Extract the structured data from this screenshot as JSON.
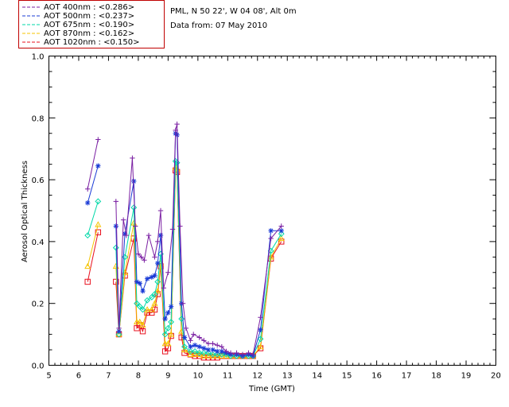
{
  "chart_data": {
    "type": "line",
    "title": "PML, N 50 22', W 04 08', Alt 0m",
    "subtitle": "Data from: 07 May 2010",
    "xlabel": "Time (GMT)",
    "ylabel": "Aerosol Optical Thickness",
    "xlim": [
      5,
      20
    ],
    "ylim": [
      0.0,
      1.0
    ],
    "xticks": [
      "5",
      "6",
      "7",
      "8",
      "9",
      "10",
      "11",
      "12",
      "13",
      "14",
      "15",
      "16",
      "17",
      "18",
      "19",
      "20"
    ],
    "yticks": [
      "0.0",
      "0.2",
      "0.4",
      "0.6",
      "0.8",
      "1.0"
    ],
    "series": [
      {
        "name": "AOT  400nm : <0.286>",
        "color": "#7a1fa2",
        "marker": "plus",
        "points": [
          [
            6.3,
            0.57
          ],
          [
            6.65,
            0.73
          ],
          [
            7.25,
            0.53
          ],
          [
            7.35,
            0.12
          ],
          [
            7.5,
            0.47
          ],
          [
            7.6,
            0.42
          ],
          [
            7.8,
            0.67
          ],
          [
            7.9,
            0.45
          ],
          [
            8.0,
            0.36
          ],
          [
            8.1,
            0.35
          ],
          [
            8.2,
            0.34
          ],
          [
            8.35,
            0.42
          ],
          [
            8.55,
            0.35
          ],
          [
            8.65,
            0.4
          ],
          [
            8.75,
            0.5
          ],
          [
            8.85,
            0.25
          ],
          [
            9.0,
            0.3
          ],
          [
            9.15,
            0.44
          ],
          [
            9.25,
            0.76
          ],
          [
            9.3,
            0.78
          ],
          [
            9.4,
            0.45
          ],
          [
            9.5,
            0.2
          ],
          [
            9.6,
            0.12
          ],
          [
            9.75,
            0.08
          ],
          [
            9.85,
            0.1
          ],
          [
            10.05,
            0.09
          ],
          [
            10.2,
            0.08
          ],
          [
            10.35,
            0.07
          ],
          [
            10.5,
            0.07
          ],
          [
            10.65,
            0.065
          ],
          [
            10.8,
            0.06
          ],
          [
            10.95,
            0.045
          ],
          [
            11.1,
            0.04
          ],
          [
            11.3,
            0.04
          ],
          [
            11.5,
            0.035
          ],
          [
            11.7,
            0.04
          ],
          [
            11.85,
            0.035
          ],
          [
            12.1,
            0.155
          ],
          [
            12.45,
            0.41
          ],
          [
            12.8,
            0.45
          ]
        ]
      },
      {
        "name": "AOT  500nm : <0.237>",
        "color": "#1a3bd6",
        "marker": "star",
        "points": [
          [
            6.3,
            0.525
          ],
          [
            6.65,
            0.645
          ],
          [
            7.25,
            0.45
          ],
          [
            7.35,
            0.11
          ],
          [
            7.55,
            0.425
          ],
          [
            7.85,
            0.595
          ],
          [
            7.95,
            0.27
          ],
          [
            8.05,
            0.265
          ],
          [
            8.15,
            0.24
          ],
          [
            8.3,
            0.28
          ],
          [
            8.45,
            0.285
          ],
          [
            8.55,
            0.29
          ],
          [
            8.65,
            0.33
          ],
          [
            8.75,
            0.42
          ],
          [
            8.9,
            0.15
          ],
          [
            9.0,
            0.17
          ],
          [
            9.1,
            0.19
          ],
          [
            9.25,
            0.75
          ],
          [
            9.3,
            0.745
          ],
          [
            9.45,
            0.2
          ],
          [
            9.55,
            0.09
          ],
          [
            9.75,
            0.06
          ],
          [
            9.9,
            0.065
          ],
          [
            10.05,
            0.06
          ],
          [
            10.2,
            0.055
          ],
          [
            10.35,
            0.05
          ],
          [
            10.5,
            0.05
          ],
          [
            10.65,
            0.045
          ],
          [
            10.8,
            0.045
          ],
          [
            10.95,
            0.04
          ],
          [
            11.1,
            0.035
          ],
          [
            11.3,
            0.035
          ],
          [
            11.5,
            0.03
          ],
          [
            11.7,
            0.035
          ],
          [
            11.85,
            0.03
          ],
          [
            12.1,
            0.115
          ],
          [
            12.45,
            0.435
          ],
          [
            12.8,
            0.435
          ]
        ]
      },
      {
        "name": "AOT  675nm : <0.190>",
        "color": "#00d8a8",
        "marker": "diamond",
        "points": [
          [
            6.3,
            0.42
          ],
          [
            6.65,
            0.53
          ],
          [
            7.25,
            0.38
          ],
          [
            7.35,
            0.1
          ],
          [
            7.55,
            0.35
          ],
          [
            7.85,
            0.51
          ],
          [
            7.95,
            0.2
          ],
          [
            8.05,
            0.19
          ],
          [
            8.15,
            0.18
          ],
          [
            8.3,
            0.21
          ],
          [
            8.45,
            0.22
          ],
          [
            8.55,
            0.23
          ],
          [
            8.65,
            0.27
          ],
          [
            8.75,
            0.36
          ],
          [
            8.9,
            0.1
          ],
          [
            9.0,
            0.12
          ],
          [
            9.1,
            0.14
          ],
          [
            9.25,
            0.66
          ],
          [
            9.3,
            0.655
          ],
          [
            9.45,
            0.15
          ],
          [
            9.55,
            0.06
          ],
          [
            9.75,
            0.045
          ],
          [
            9.9,
            0.045
          ],
          [
            10.05,
            0.04
          ],
          [
            10.2,
            0.04
          ],
          [
            10.35,
            0.04
          ],
          [
            10.5,
            0.035
          ],
          [
            10.65,
            0.035
          ],
          [
            10.8,
            0.035
          ],
          [
            10.95,
            0.035
          ],
          [
            11.1,
            0.03
          ],
          [
            11.3,
            0.03
          ],
          [
            11.5,
            0.03
          ],
          [
            11.7,
            0.03
          ],
          [
            11.85,
            0.03
          ],
          [
            12.1,
            0.085
          ],
          [
            12.45,
            0.37
          ],
          [
            12.8,
            0.425
          ]
        ]
      },
      {
        "name": "AOT  870nm : <0.162>",
        "color": "#f5c400",
        "marker": "triangle",
        "points": [
          [
            6.3,
            0.32
          ],
          [
            6.65,
            0.455
          ],
          [
            7.25,
            0.32
          ],
          [
            7.35,
            0.1
          ],
          [
            7.55,
            0.3
          ],
          [
            7.85,
            0.46
          ],
          [
            7.95,
            0.14
          ],
          [
            8.05,
            0.14
          ],
          [
            8.15,
            0.13
          ],
          [
            8.3,
            0.18
          ],
          [
            8.45,
            0.18
          ],
          [
            8.55,
            0.2
          ],
          [
            8.65,
            0.24
          ],
          [
            8.75,
            0.33
          ],
          [
            8.9,
            0.07
          ],
          [
            9.0,
            0.07
          ],
          [
            9.1,
            0.1
          ],
          [
            9.25,
            0.64
          ],
          [
            9.3,
            0.635
          ],
          [
            9.45,
            0.11
          ],
          [
            9.55,
            0.05
          ],
          [
            9.75,
            0.035
          ],
          [
            9.9,
            0.035
          ],
          [
            10.05,
            0.035
          ],
          [
            10.2,
            0.03
          ],
          [
            10.35,
            0.03
          ],
          [
            10.5,
            0.03
          ],
          [
            10.65,
            0.03
          ],
          [
            10.8,
            0.03
          ],
          [
            10.95,
            0.03
          ],
          [
            11.1,
            0.03
          ],
          [
            11.3,
            0.03
          ],
          [
            11.5,
            0.03
          ],
          [
            11.7,
            0.03
          ],
          [
            11.85,
            0.03
          ],
          [
            12.1,
            0.06
          ],
          [
            12.45,
            0.35
          ],
          [
            12.8,
            0.41
          ]
        ]
      },
      {
        "name": "AOT 1020nm : <0.150>",
        "color": "#e8101e",
        "marker": "square",
        "points": [
          [
            6.3,
            0.27
          ],
          [
            6.65,
            0.43
          ],
          [
            7.25,
            0.27
          ],
          [
            7.35,
            0.1
          ],
          [
            7.55,
            0.29
          ],
          [
            7.85,
            0.41
          ],
          [
            7.95,
            0.12
          ],
          [
            8.05,
            0.13
          ],
          [
            8.15,
            0.11
          ],
          [
            8.3,
            0.17
          ],
          [
            8.45,
            0.17
          ],
          [
            8.55,
            0.18
          ],
          [
            8.65,
            0.23
          ],
          [
            8.75,
            0.32
          ],
          [
            8.9,
            0.045
          ],
          [
            9.0,
            0.055
          ],
          [
            9.1,
            0.095
          ],
          [
            9.25,
            0.63
          ],
          [
            9.3,
            0.625
          ],
          [
            9.45,
            0.09
          ],
          [
            9.55,
            0.04
          ],
          [
            9.75,
            0.035
          ],
          [
            9.9,
            0.03
          ],
          [
            10.05,
            0.03
          ],
          [
            10.2,
            0.025
          ],
          [
            10.35,
            0.025
          ],
          [
            10.5,
            0.025
          ],
          [
            10.65,
            0.025
          ],
          [
            10.8,
            0.03
          ],
          [
            10.95,
            0.03
          ],
          [
            11.1,
            0.03
          ],
          [
            11.3,
            0.03
          ],
          [
            11.5,
            0.03
          ],
          [
            11.7,
            0.03
          ],
          [
            11.85,
            0.03
          ],
          [
            12.1,
            0.055
          ],
          [
            12.45,
            0.345
          ],
          [
            12.8,
            0.4
          ]
        ]
      }
    ]
  }
}
